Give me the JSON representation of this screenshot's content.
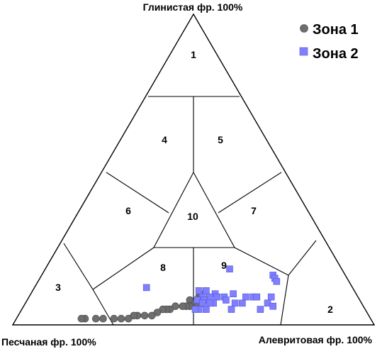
{
  "chart_data": {
    "type": "scatter",
    "subtype": "ternary",
    "vertex_labels": {
      "top": "Глинистая фр. 100%",
      "left": "Песчаная фр. 100%",
      "right": "Алевритовая фр. 100%"
    },
    "zone_labels": [
      "1",
      "2",
      "3",
      "4",
      "5",
      "6",
      "7",
      "8",
      "9",
      "10"
    ],
    "legend": {
      "position": "top-right"
    },
    "series": [
      {
        "name": "Зона 1",
        "marker": "circle",
        "color": "#6e6e6e",
        "points": [
          {
            "sand": 47,
            "silt": 45,
            "clay": 8
          },
          {
            "sand": 46,
            "silt": 47,
            "clay": 7
          },
          {
            "sand": 45,
            "silt": 48,
            "clay": 7
          },
          {
            "sand": 44,
            "silt": 47,
            "clay": 9
          },
          {
            "sand": 43,
            "silt": 49,
            "clay": 8
          },
          {
            "sand": 42,
            "silt": 50,
            "clay": 8
          },
          {
            "sand": 43,
            "silt": 47,
            "clay": 10
          },
          {
            "sand": 44,
            "silt": 49,
            "clay": 7
          },
          {
            "sand": 46,
            "silt": 48,
            "clay": 6
          },
          {
            "sand": 48,
            "silt": 46,
            "clay": 6
          },
          {
            "sand": 49,
            "silt": 45,
            "clay": 6
          },
          {
            "sand": 50,
            "silt": 44,
            "clay": 6
          },
          {
            "sand": 52,
            "silt": 42,
            "clay": 6
          },
          {
            "sand": 54,
            "silt": 41,
            "clay": 5
          },
          {
            "sand": 55,
            "silt": 40,
            "clay": 5
          },
          {
            "sand": 56,
            "silt": 39,
            "clay": 5
          },
          {
            "sand": 58,
            "silt": 38,
            "clay": 4
          },
          {
            "sand": 60,
            "silt": 37,
            "clay": 3
          },
          {
            "sand": 62,
            "silt": 35,
            "clay": 3
          },
          {
            "sand": 64,
            "silt": 33,
            "clay": 3
          },
          {
            "sand": 65,
            "silt": 32,
            "clay": 3
          },
          {
            "sand": 67,
            "silt": 31,
            "clay": 2
          },
          {
            "sand": 69,
            "silt": 29,
            "clay": 2
          },
          {
            "sand": 71,
            "silt": 27,
            "clay": 2
          },
          {
            "sand": 74,
            "silt": 24,
            "clay": 2
          },
          {
            "sand": 76,
            "silt": 22,
            "clay": 2
          },
          {
            "sand": 79,
            "silt": 19,
            "clay": 2
          },
          {
            "sand": 80,
            "silt": 18,
            "clay": 2
          }
        ]
      },
      {
        "name": "Зона 2",
        "marker": "square",
        "color": "#7f7fff",
        "points": [
          {
            "sand": 31,
            "silt": 51,
            "clay": 18
          },
          {
            "sand": 20,
            "silt": 64,
            "clay": 16
          },
          {
            "sand": 20,
            "silt": 65,
            "clay": 15
          },
          {
            "sand": 20,
            "silt": 66,
            "clay": 14
          },
          {
            "sand": 57,
            "silt": 31,
            "clay": 12
          },
          {
            "sand": 43,
            "silt": 46,
            "clay": 11
          },
          {
            "sand": 41,
            "silt": 48,
            "clay": 11
          },
          {
            "sand": 39,
            "silt": 51,
            "clay": 10
          },
          {
            "sand": 34,
            "silt": 56,
            "clay": 10
          },
          {
            "sand": 37,
            "silt": 54,
            "clay": 9
          },
          {
            "sand": 31,
            "silt": 60,
            "clay": 9
          },
          {
            "sand": 29,
            "silt": 62,
            "clay": 9
          },
          {
            "sand": 24,
            "silt": 67,
            "clay": 9
          },
          {
            "sand": 43,
            "silt": 48,
            "clay": 9
          },
          {
            "sand": 41,
            "silt": 50,
            "clay": 9
          },
          {
            "sand": 39,
            "silt": 52,
            "clay": 9
          },
          {
            "sand": 37,
            "silt": 55,
            "clay": 8
          },
          {
            "sand": 45,
            "silt": 47,
            "clay": 8
          },
          {
            "sand": 43,
            "silt": 49,
            "clay": 8
          },
          {
            "sand": 41,
            "silt": 52,
            "clay": 7
          },
          {
            "sand": 35,
            "silt": 58,
            "clay": 7
          },
          {
            "sand": 33,
            "silt": 60,
            "clay": 7
          },
          {
            "sand": 26,
            "silt": 67,
            "clay": 7
          },
          {
            "sand": 44,
            "silt": 49,
            "clay": 7
          },
          {
            "sand": 42,
            "silt": 51,
            "clay": 7
          },
          {
            "sand": 46,
            "silt": 49,
            "clay": 5
          },
          {
            "sand": 44,
            "silt": 51,
            "clay": 5
          },
          {
            "sand": 37,
            "silt": 58,
            "clay": 5
          },
          {
            "sand": 29,
            "silt": 66,
            "clay": 5
          },
          {
            "sand": 25,
            "silt": 69,
            "clay": 6
          },
          {
            "sand": 28,
            "silt": 63,
            "clay": 9
          },
          {
            "sand": 47,
            "silt": 48,
            "clay": 5
          }
        ]
      }
    ]
  }
}
